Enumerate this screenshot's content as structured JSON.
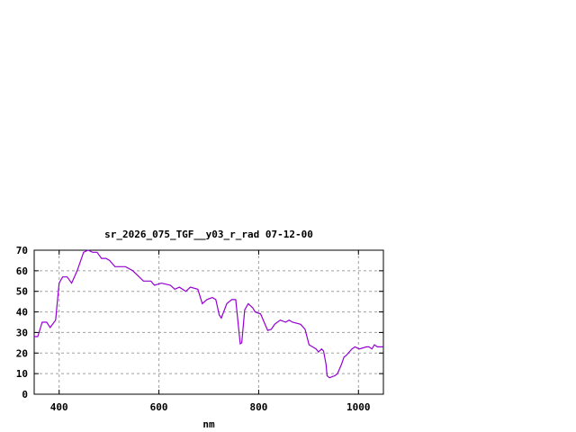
{
  "chart_data": {
    "type": "line",
    "title": "sr_2026_075_TGF__y03_r_rad 07-12-00",
    "xlabel": "nm",
    "ylabel": "",
    "xlim": [
      350,
      1050
    ],
    "ylim": [
      0,
      70
    ],
    "xticks": [
      400,
      600,
      800,
      1000
    ],
    "yticks": [
      0,
      10,
      20,
      30,
      40,
      50,
      60,
      70
    ],
    "grid": true,
    "legend": "none",
    "series": [
      {
        "color": "#9400d3",
        "x": [
          350,
          357,
          366,
          375,
          382,
          393,
          400,
          407,
          416,
          425,
          436,
          449,
          458,
          467,
          476,
          485,
          494,
          501,
          512,
          521,
          533,
          548,
          569,
          584,
          591,
          605,
          623,
          632,
          641,
          654,
          663,
          678,
          687,
          696,
          707,
          714,
          721,
          725,
          736,
          746,
          754,
          759,
          763,
          766,
          772,
          779,
          788,
          793,
          804,
          811,
          818,
          825,
          832,
          843,
          854,
          861,
          868,
          884,
          893,
          901,
          908,
          915,
          920,
          926,
          930,
          935,
          937,
          942,
          953,
          958,
          966,
          971,
          976,
          987,
          993,
          1002,
          1016,
          1021,
          1027,
          1032,
          1038,
          1041,
          1050
        ],
        "y": [
          28,
          28,
          35,
          35,
          32.4,
          36,
          54,
          57,
          57,
          54,
          60,
          69,
          70,
          69,
          69,
          66,
          66,
          65,
          62,
          62,
          62,
          60,
          55,
          55,
          53,
          54,
          53,
          51,
          52,
          50,
          52,
          51,
          44,
          46,
          47,
          46,
          38.5,
          37,
          44,
          46,
          46,
          34,
          24.5,
          25,
          41,
          44,
          42,
          40,
          39,
          35,
          31,
          31.5,
          34,
          36,
          35,
          36,
          35,
          34,
          31.5,
          24,
          23,
          22,
          20.5,
          22,
          21,
          14.5,
          9,
          8,
          9,
          10,
          14.5,
          18,
          19,
          22,
          23,
          22,
          23,
          23,
          22,
          24,
          23,
          23,
          23
        ]
      }
    ]
  }
}
